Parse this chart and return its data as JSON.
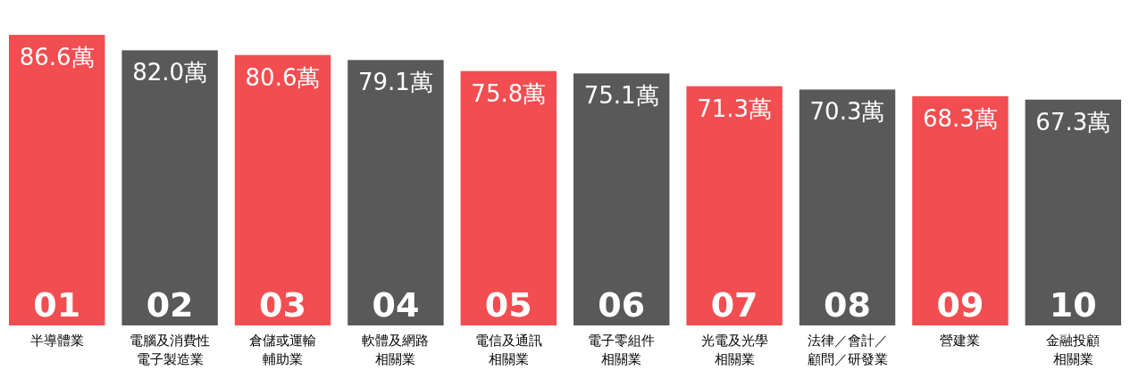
{
  "chart_data": {
    "type": "bar",
    "categories": [
      "半導體業",
      "電腦及消費性電子製造業",
      "倉儲或運輸輔助業",
      "軟體及網路相關業",
      "電信及通訊相關業",
      "電子零組件相關業",
      "光電及光學相關業",
      "法律／會計／顧問／研發業",
      "營建業",
      "金融投顧相關業"
    ],
    "values": [
      86.6,
      82.0,
      80.6,
      79.1,
      75.8,
      75.1,
      71.3,
      70.3,
      68.3,
      67.3
    ],
    "value_labels": [
      "86.6萬",
      "82.0萬",
      "80.6萬",
      "79.1萬",
      "75.8萬",
      "75.1萬",
      "71.3萬",
      "70.3萬",
      "68.3萬",
      "67.3萬"
    ],
    "colors": [
      "#f24d51",
      "#595959",
      "#f24d51",
      "#595959",
      "#f24d51",
      "#595959",
      "#f24d51",
      "#595959",
      "#f24d51",
      "#595959"
    ],
    "annotations": [
      "01",
      "02",
      "03",
      "04",
      "05",
      "06",
      "07",
      "08",
      "09",
      "10"
    ],
    "tick_labels": "x"
  }
}
